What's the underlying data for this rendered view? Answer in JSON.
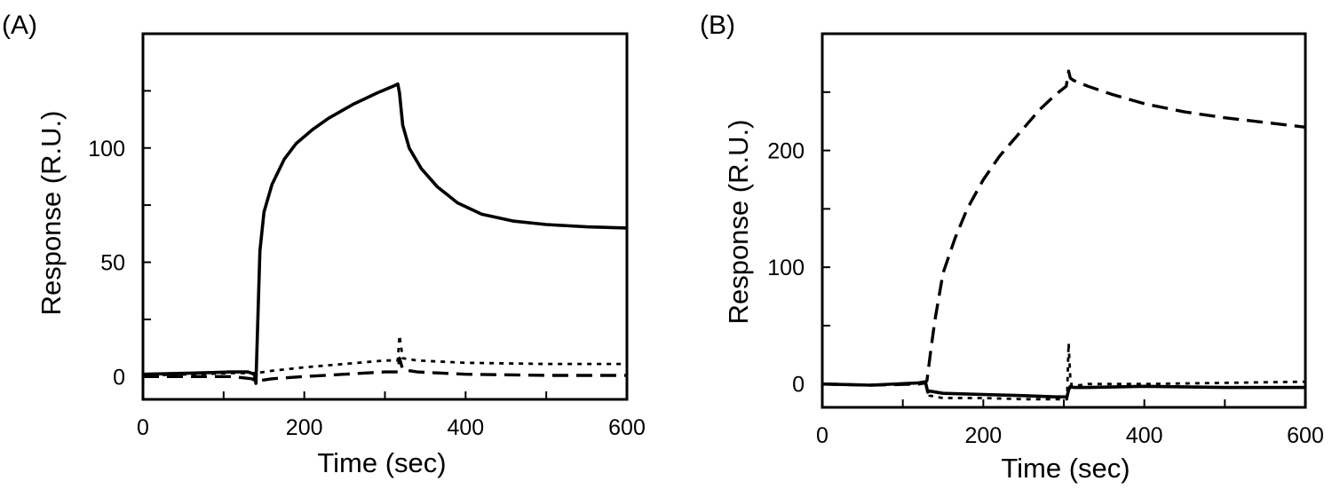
{
  "chart_data": [
    {
      "type": "line",
      "panel_label": "(A)",
      "title": "",
      "xlabel": "Time (sec)",
      "ylabel": "Response (R.U.)",
      "xlim": [
        0,
        600
      ],
      "ylim": [
        -10,
        150
      ],
      "xticks": [
        0,
        200,
        400,
        600
      ],
      "xticks_minor": [
        100,
        300,
        500
      ],
      "yticks": [
        0,
        50,
        100
      ],
      "yticks_minor": [
        25,
        75,
        125
      ],
      "grid": false,
      "series": [
        {
          "style": "solid",
          "x": [
            0,
            60,
            110,
            130,
            138,
            140,
            145,
            150,
            160,
            175,
            190,
            210,
            230,
            260,
            290,
            310,
            316,
            318,
            322,
            330,
            345,
            365,
            390,
            420,
            460,
            500,
            550,
            600
          ],
          "y": [
            1,
            1.5,
            2,
            2,
            1,
            -3,
            55,
            72,
            84,
            95,
            102,
            108,
            113,
            119,
            124,
            127,
            128,
            124,
            110,
            100,
            91,
            83,
            76,
            71,
            68,
            66.5,
            65.5,
            65
          ]
        },
        {
          "style": "dashed",
          "x": [
            0,
            60,
            110,
            135,
            140,
            160,
            200,
            250,
            300,
            316,
            318,
            322,
            340,
            400,
            500,
            600
          ],
          "y": [
            0,
            0,
            0,
            -1,
            -2,
            -1,
            0,
            1,
            2,
            2,
            8,
            3,
            2,
            1,
            0.5,
            0.5
          ]
        },
        {
          "style": "dotted",
          "x": [
            0,
            60,
            110,
            135,
            140,
            160,
            200,
            250,
            300,
            316,
            318,
            322,
            340,
            400,
            500,
            600
          ],
          "y": [
            0.5,
            1,
            1.5,
            1.5,
            1.5,
            2.5,
            4,
            5.5,
            7,
            7,
            18,
            8,
            7,
            6,
            5.5,
            5.5
          ]
        }
      ]
    },
    {
      "type": "line",
      "panel_label": "(B)",
      "title": "",
      "xlabel": "Time (sec)",
      "ylabel": "Response (R.U.)",
      "xlim": [
        0,
        600
      ],
      "ylim": [
        -20,
        300
      ],
      "xticks": [
        0,
        200,
        400,
        600
      ],
      "xticks_minor": [
        100,
        300,
        500
      ],
      "yticks": [
        0,
        100,
        200
      ],
      "yticks_minor": [
        50,
        150,
        250
      ],
      "grid": false,
      "series": [
        {
          "style": "solid",
          "x": [
            0,
            60,
            120,
            128,
            131,
            133,
            150,
            200,
            250,
            290,
            304,
            306,
            308,
            312,
            330,
            400,
            500,
            600
          ],
          "y": [
            0,
            -1,
            1,
            2,
            -7,
            -6,
            -8,
            -9,
            -10,
            -11,
            -11,
            -5,
            -2,
            -3,
            -3,
            -2,
            -3,
            -3
          ]
        },
        {
          "style": "dashed",
          "x": [
            0,
            60,
            120,
            128,
            130,
            135,
            140,
            150,
            165,
            180,
            200,
            220,
            245,
            270,
            290,
            303,
            306,
            308,
            312,
            330,
            360,
            400,
            450,
            500,
            550,
            600
          ],
          "y": [
            0,
            -1,
            0,
            1,
            3,
            30,
            55,
            95,
            125,
            150,
            175,
            195,
            215,
            235,
            248,
            255,
            268,
            262,
            260,
            255,
            248,
            240,
            233,
            228,
            224,
            220
          ]
        },
        {
          "style": "dotted",
          "x": [
            0,
            60,
            120,
            128,
            131,
            133,
            150,
            200,
            250,
            290,
            304,
            306,
            308,
            310,
            330,
            400,
            500,
            600
          ],
          "y": [
            0,
            -1,
            1,
            2,
            -7,
            -10,
            -12,
            -12,
            -13,
            -13,
            -13,
            35,
            5,
            -2,
            0,
            0,
            1,
            2
          ]
        }
      ]
    }
  ]
}
